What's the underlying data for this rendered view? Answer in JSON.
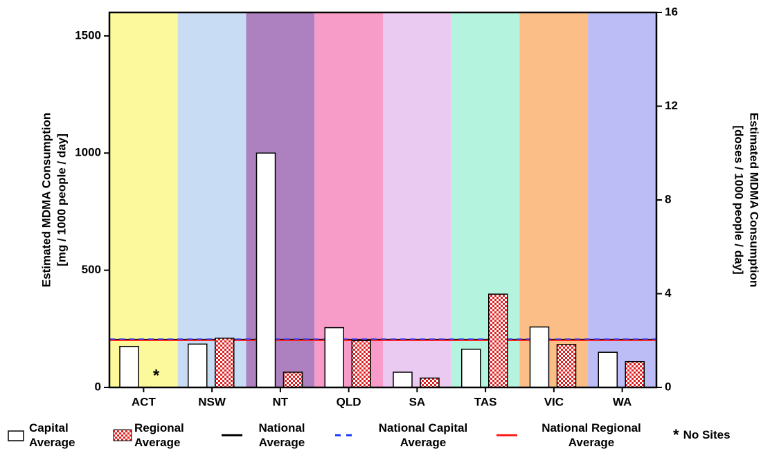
{
  "chart_data": {
    "type": "bar",
    "ylabel": [
      "Estimated MDMA Consumption",
      "[mg / 1000 people / day]"
    ],
    "y2label": [
      "Estimated MDMA Consumption",
      "[doses / 1000 people / day]"
    ],
    "categories": [
      "ACT",
      "NSW",
      "NT",
      "QLD",
      "SA",
      "TAS",
      "VIC",
      "WA"
    ],
    "category_colors": [
      "#fbf99b",
      "#c8dcf4",
      "#ad80c0",
      "#f79bc8",
      "#ebcaf2",
      "#b4f3dd",
      "#fbbe86",
      "#bcbcf6"
    ],
    "series": [
      {
        "name": "Capital Average",
        "color": "#ffffff",
        "values": [
          175,
          185,
          1000,
          255,
          65,
          163,
          258,
          150
        ]
      },
      {
        "name": "Regional Average",
        "color": "#e02020",
        "values": [
          null,
          210,
          65,
          200,
          40,
          398,
          183,
          110
        ]
      }
    ],
    "reference_lines": [
      {
        "name": "National Average",
        "color": "#000000",
        "dashed": false,
        "value": 204
      },
      {
        "name": "National Capital Average",
        "color": "#1a3cff",
        "dashed": true,
        "value": 206
      },
      {
        "name": "National Regional Average",
        "color": "#ff1a1a",
        "dashed": false,
        "value": 201
      }
    ],
    "no_sites_marker": "*",
    "no_sites_label": "No Sites",
    "ylim": [
      0,
      1600
    ],
    "yticks": [
      0,
      500,
      1000,
      1500
    ],
    "y2lim": [
      0,
      16
    ],
    "y2ticks": [
      0,
      4,
      8,
      12,
      16
    ]
  }
}
